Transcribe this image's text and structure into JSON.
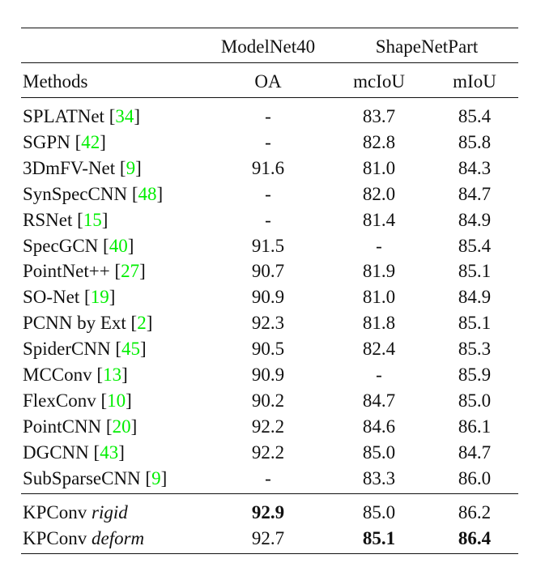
{
  "table": {
    "group_headers": [
      "ModelNet40",
      "ShapeNetPart"
    ],
    "columns": [
      "Methods",
      "OA",
      "mcIoU",
      "mIoU"
    ],
    "cite_color": "#00ee00",
    "rows": [
      {
        "method": "SPLATNet",
        "cite": "34",
        "oa": "-",
        "mciou": "83.7",
        "miou": "85.4"
      },
      {
        "method": "SGPN",
        "cite": "42",
        "oa": "-",
        "mciou": "82.8",
        "miou": "85.8"
      },
      {
        "method": "3DmFV-Net",
        "cite": "9",
        "oa": "91.6",
        "mciou": "81.0",
        "miou": "84.3"
      },
      {
        "method": "SynSpecCNN",
        "cite": "48",
        "oa": "-",
        "mciou": "82.0",
        "miou": "84.7"
      },
      {
        "method": "RSNet",
        "cite": "15",
        "oa": "-",
        "mciou": "81.4",
        "miou": "84.9"
      },
      {
        "method": "SpecGCN",
        "cite": "40",
        "oa": "91.5",
        "mciou": "-",
        "miou": "85.4"
      },
      {
        "method": "PointNet++",
        "cite": "27",
        "oa": "90.7",
        "mciou": "81.9",
        "miou": "85.1"
      },
      {
        "method": "SO-Net",
        "cite": "19",
        "oa": "90.9",
        "mciou": "81.0",
        "miou": "84.9"
      },
      {
        "method": "PCNN by Ext",
        "cite": "2",
        "oa": "92.3",
        "mciou": "81.8",
        "miou": "85.1"
      },
      {
        "method": "SpiderCNN",
        "cite": "45",
        "oa": "90.5",
        "mciou": "82.4",
        "miou": "85.3"
      },
      {
        "method": "MCConv",
        "cite": "13",
        "oa": "90.9",
        "mciou": "-",
        "miou": "85.9"
      },
      {
        "method": "FlexConv",
        "cite": "10",
        "oa": "90.2",
        "mciou": "84.7",
        "miou": "85.0"
      },
      {
        "method": "PointCNN",
        "cite": "20",
        "oa": "92.2",
        "mciou": "84.6",
        "miou": "86.1"
      },
      {
        "method": "DGCNN",
        "cite": "43",
        "oa": "92.2",
        "mciou": "85.0",
        "miou": "84.7"
      },
      {
        "method": "SubSparseCNN",
        "cite": "9",
        "oa": "-",
        "mciou": "83.3",
        "miou": "86.0"
      }
    ],
    "ours": [
      {
        "method": "KPConv",
        "variant": "rigid",
        "oa": "92.9",
        "mciou": "85.0",
        "miou": "86.2",
        "bold": [
          "oa"
        ]
      },
      {
        "method": "KPConv",
        "variant": "deform",
        "oa": "92.7",
        "mciou": "85.1",
        "miou": "86.4",
        "bold": [
          "mciou",
          "miou"
        ]
      }
    ]
  }
}
